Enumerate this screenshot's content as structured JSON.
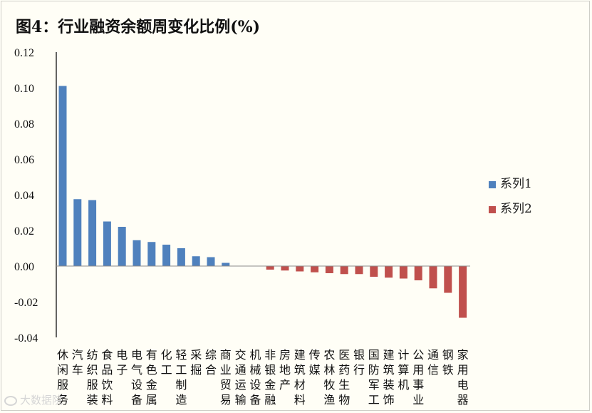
{
  "chart_data": {
    "type": "bar",
    "title": "图4：行业融资余额周变化比例(%)",
    "xlabel": "",
    "ylabel": "",
    "ylim": [
      -0.04,
      0.12
    ],
    "yticks": [
      "0.12",
      "0.10",
      "0.08",
      "0.06",
      "0.04",
      "0.02",
      "0.00",
      "-0.02",
      "-0.04"
    ],
    "ytick_values": [
      0.12,
      0.1,
      0.08,
      0.06,
      0.04,
      0.02,
      0.0,
      -0.02,
      -0.04
    ],
    "grid": false,
    "legend_position": "right",
    "categories": [
      "休闲服务",
      "汽车",
      "纺织服装",
      "食品饮料",
      "电子",
      "电气设备",
      "有色金属",
      "化工",
      "轻工制造",
      "采掘",
      "综合",
      "商业贸易",
      "交通运输",
      "机械设备",
      "非银金融",
      "房地产",
      "建筑材料",
      "传媒",
      "农林牧渔",
      "医药生物",
      "银行",
      "国防军工",
      "建筑装饰",
      "计算机",
      "公用事业",
      "通信",
      "钢铁",
      "家用电器"
    ],
    "series": [
      {
        "name": "系列1",
        "color": "#4f81bd",
        "values": [
          0.101,
          0.0375,
          0.037,
          0.025,
          0.022,
          0.0145,
          0.0135,
          0.012,
          0.01,
          0.0055,
          0.005,
          0.0018,
          null,
          null,
          null,
          null,
          null,
          null,
          null,
          null,
          null,
          null,
          null,
          null,
          null,
          null,
          null,
          null
        ]
      },
      {
        "name": "系列2",
        "color": "#c0504d",
        "values": [
          null,
          null,
          null,
          null,
          null,
          null,
          null,
          null,
          null,
          null,
          null,
          null,
          0,
          0,
          -0.002,
          -0.0025,
          -0.003,
          -0.0035,
          -0.004,
          -0.0045,
          -0.0045,
          -0.006,
          -0.0065,
          -0.007,
          -0.008,
          -0.0125,
          -0.015,
          -0.029
        ]
      }
    ]
  },
  "watermark": "大数据院"
}
